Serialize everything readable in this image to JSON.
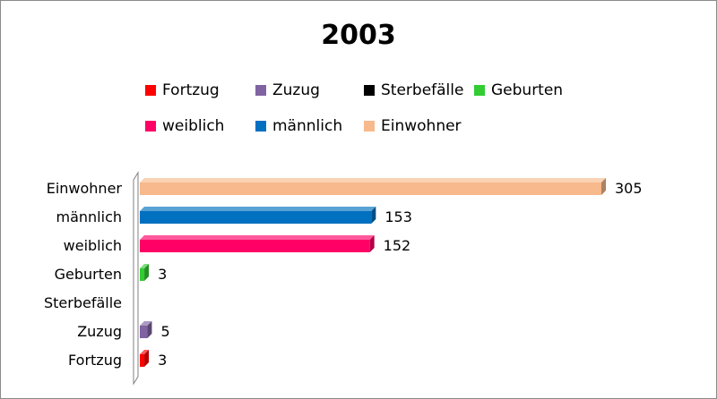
{
  "chart_data": {
    "type": "bar",
    "orientation": "horizontal",
    "title": "2003",
    "categories": [
      "Einwohner",
      "männlich",
      "weiblich",
      "Geburten",
      "Sterbefälle",
      "Zuzug",
      "Fortzug"
    ],
    "values": [
      305,
      153,
      152,
      3,
      0,
      5,
      3
    ],
    "value_labels": [
      "305",
      "153",
      "152",
      "3",
      "",
      "5",
      "3"
    ],
    "colors": [
      "#F8B98C",
      "#0070C0",
      "#FF0066",
      "#33CC33",
      "#000000",
      "#8064A2",
      "#FF0000"
    ],
    "xlim": [
      0,
      305
    ],
    "grid": false,
    "legend": {
      "placement": "top",
      "items": [
        {
          "label": "Fortzug",
          "color": "#FF0000"
        },
        {
          "label": "Zuzug",
          "color": "#8064A2"
        },
        {
          "label": "Sterbefälle",
          "color": "#000000"
        },
        {
          "label": "Geburten",
          "color": "#33CC33"
        },
        {
          "label": "weiblich",
          "color": "#FF0066"
        },
        {
          "label": "männlich",
          "color": "#0070C0"
        },
        {
          "label": "Einwohner",
          "color": "#F8B98C"
        }
      ]
    }
  }
}
